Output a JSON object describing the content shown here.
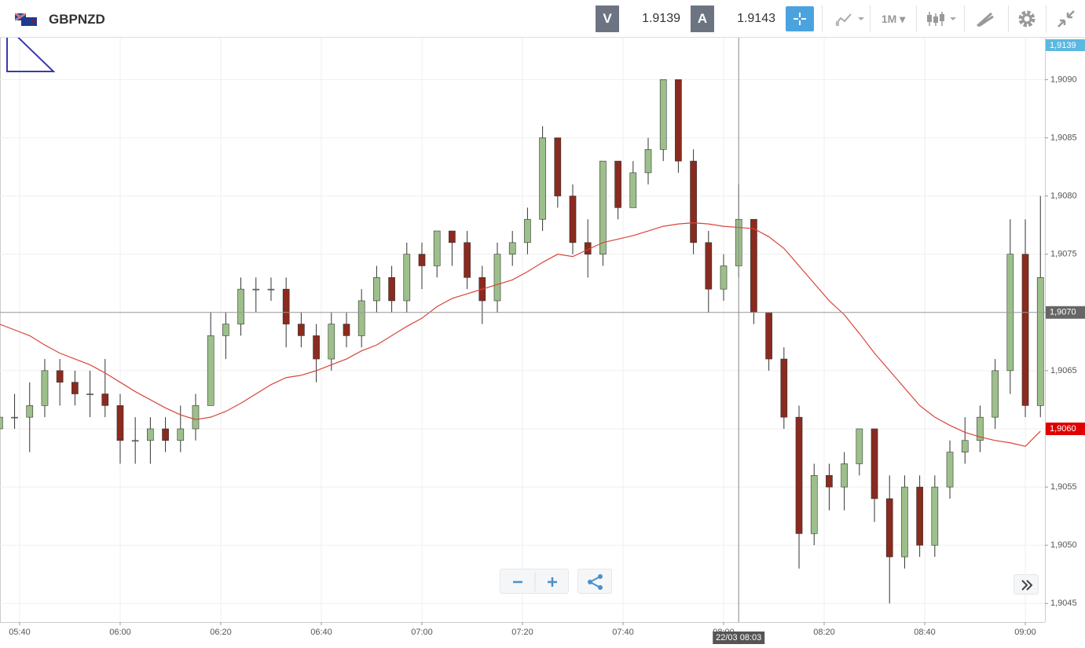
{
  "header": {
    "symbol": "GBPNZD",
    "bid_label": "V",
    "bid": "1.9139",
    "ask_label": "A",
    "ask": "1.9143",
    "timeframe": "1M"
  },
  "chart_data": {
    "type": "candlestick",
    "x": [
      336,
      339,
      342,
      345,
      348,
      351,
      354,
      357,
      360,
      363,
      366,
      369,
      372,
      375,
      378,
      381,
      384,
      387,
      390,
      393,
      396,
      399,
      402,
      405,
      408,
      411,
      414,
      417,
      420,
      423,
      426,
      429,
      432,
      435,
      438,
      441,
      444,
      447,
      450,
      453,
      456,
      459,
      462,
      465,
      468,
      471,
      474,
      477,
      480,
      483,
      486,
      489,
      492,
      495,
      498,
      501,
      504,
      507,
      510,
      513,
      516,
      519,
      522,
      525,
      528,
      531,
      534,
      537,
      540,
      543
    ],
    "open": [
      1.906,
      1.9061,
      1.9061,
      1.9062,
      1.9065,
      1.9064,
      1.9063,
      1.9063,
      1.9062,
      1.9059,
      1.9059,
      1.906,
      1.9059,
      1.906,
      1.9062,
      1.9068,
      1.9069,
      1.9072,
      1.9072,
      1.9072,
      1.9069,
      1.9068,
      1.9066,
      1.9069,
      1.9068,
      1.9071,
      1.9073,
      1.9071,
      1.9075,
      1.9074,
      1.9077,
      1.9076,
      1.9073,
      1.9071,
      1.9075,
      1.9076,
      1.9078,
      1.9085,
      1.908,
      1.9076,
      1.9075,
      1.9083,
      1.9079,
      1.9082,
      1.9084,
      1.909,
      1.9083,
      1.9076,
      1.9072,
      1.9074,
      1.9078,
      1.907,
      1.9066,
      1.9061,
      1.9051,
      1.9056,
      1.9055,
      1.9057,
      1.906,
      1.9054,
      1.9049,
      1.9055,
      1.905,
      1.9055,
      1.9058,
      1.9059,
      1.9061,
      1.9065,
      1.9075,
      1.9062
    ],
    "high": [
      1.9063,
      1.9063,
      1.9064,
      1.9066,
      1.9066,
      1.9065,
      1.9065,
      1.9066,
      1.9063,
      1.9061,
      1.9061,
      1.9061,
      1.9062,
      1.9063,
      1.907,
      1.907,
      1.9073,
      1.9073,
      1.9073,
      1.9073,
      1.907,
      1.9069,
      1.907,
      1.907,
      1.9072,
      1.9074,
      1.9074,
      1.9076,
      1.9076,
      1.9077,
      1.9077,
      1.9077,
      1.9074,
      1.9076,
      1.9077,
      1.9079,
      1.9086,
      1.9085,
      1.9081,
      1.9078,
      1.9083,
      1.9083,
      1.9083,
      1.9085,
      1.909,
      1.909,
      1.9084,
      1.9077,
      1.9075,
      1.9081,
      1.9078,
      1.907,
      1.9067,
      1.9062,
      1.9057,
      1.9057,
      1.9058,
      1.906,
      1.906,
      1.9056,
      1.9056,
      1.9056,
      1.9056,
      1.9059,
      1.9061,
      1.9062,
      1.9066,
      1.9078,
      1.9078,
      1.908
    ],
    "low": [
      1.9059,
      1.906,
      1.9058,
      1.9061,
      1.9062,
      1.9062,
      1.9061,
      1.9061,
      1.9057,
      1.9057,
      1.9057,
      1.9058,
      1.9058,
      1.9059,
      1.9062,
      1.9066,
      1.9068,
      1.907,
      1.9071,
      1.9067,
      1.9067,
      1.9064,
      1.9065,
      1.9067,
      1.9067,
      1.907,
      1.907,
      1.907,
      1.9072,
      1.9073,
      1.9074,
      1.9072,
      1.9069,
      1.907,
      1.9074,
      1.9075,
      1.9077,
      1.9079,
      1.9075,
      1.9073,
      1.9074,
      1.9078,
      1.9079,
      1.9081,
      1.9083,
      1.9082,
      1.9075,
      1.907,
      1.9071,
      1.9073,
      1.9069,
      1.9065,
      1.906,
      1.9048,
      1.905,
      1.9053,
      1.9053,
      1.9056,
      1.9052,
      1.9045,
      1.9048,
      1.9049,
      1.9049,
      1.9054,
      1.9057,
      1.9058,
      1.906,
      1.9063,
      1.9061,
      1.9061
    ],
    "close": [
      1.9061,
      1.9061,
      1.9062,
      1.9065,
      1.9064,
      1.9063,
      1.9063,
      1.9062,
      1.9059,
      1.9059,
      1.906,
      1.9059,
      1.906,
      1.9062,
      1.9068,
      1.9069,
      1.9072,
      1.9072,
      1.9072,
      1.9069,
      1.9068,
      1.9066,
      1.9069,
      1.9068,
      1.9071,
      1.9073,
      1.9071,
      1.9075,
      1.9074,
      1.9077,
      1.9076,
      1.9073,
      1.9071,
      1.9075,
      1.9076,
      1.9078,
      1.9085,
      1.908,
      1.9076,
      1.9075,
      1.9083,
      1.9079,
      1.9082,
      1.9084,
      1.909,
      1.9083,
      1.9076,
      1.9072,
      1.9074,
      1.9078,
      1.907,
      1.9066,
      1.9061,
      1.9051,
      1.9056,
      1.9055,
      1.9057,
      1.906,
      1.9054,
      1.9049,
      1.9055,
      1.905,
      1.9055,
      1.9058,
      1.9059,
      1.9061,
      1.9065,
      1.9075,
      1.9062,
      1.9073
    ],
    "up_color": "#9dc08b",
    "down_color": "#8b2a1e",
    "moving_average": {
      "color": "#d9443a",
      "values": [
        1.9069,
        1.90685,
        1.9068,
        1.90672,
        1.90665,
        1.9066,
        1.90655,
        1.90648,
        1.9064,
        1.90632,
        1.90625,
        1.90618,
        1.90612,
        1.90608,
        1.9061,
        1.90615,
        1.90622,
        1.9063,
        1.90638,
        1.90644,
        1.90646,
        1.9065,
        1.90655,
        1.9066,
        1.90667,
        1.90672,
        1.9068,
        1.90688,
        1.90695,
        1.90705,
        1.90712,
        1.90716,
        1.9072,
        1.90724,
        1.90728,
        1.90735,
        1.90743,
        1.9075,
        1.90748,
        1.90754,
        1.9076,
        1.90763,
        1.90766,
        1.9077,
        1.90774,
        1.90776,
        1.90777,
        1.90776,
        1.90774,
        1.90773,
        1.90772,
        1.90765,
        1.90755,
        1.9074,
        1.90725,
        1.9071,
        1.90698,
        1.90682,
        1.90665,
        1.9065,
        1.90635,
        1.9062,
        1.9061,
        1.90603,
        1.90597,
        1.90593,
        1.9059,
        1.90588,
        1.90585,
        1.90598
      ]
    },
    "xlim": [
      336.1,
      543.9
    ],
    "ylim": [
      1.90434,
      1.90936
    ],
    "xticks": [
      {
        "value": 340,
        "label": "05:40"
      },
      {
        "value": 360,
        "label": "06:00"
      },
      {
        "value": 380,
        "label": "06:20"
      },
      {
        "value": 400,
        "label": "06:40"
      },
      {
        "value": 420,
        "label": "07:00"
      },
      {
        "value": 440,
        "label": "07:20"
      },
      {
        "value": 460,
        "label": "07:40"
      },
      {
        "value": 480,
        "label": "08:00"
      },
      {
        "value": 500,
        "label": "08:20"
      },
      {
        "value": 520,
        "label": "08:40"
      },
      {
        "value": 540,
        "label": "09:00"
      }
    ],
    "yticks": [
      {
        "value": 1.9045,
        "label": "1,9045"
      },
      {
        "value": 1.905,
        "label": "1,9050"
      },
      {
        "value": 1.9055,
        "label": "1,9055"
      },
      {
        "value": 1.906,
        "label": "1,9060"
      },
      {
        "value": 1.9065,
        "label": "1,9065"
      },
      {
        "value": 1.907,
        "label": "1,9070"
      },
      {
        "value": 1.9075,
        "label": "1,9075"
      },
      {
        "value": 1.908,
        "label": "1,9080"
      },
      {
        "value": 1.9085,
        "label": "1,9085"
      },
      {
        "value": 1.909,
        "label": "1,9090"
      }
    ],
    "grid": true,
    "top_price_tag": "1,9139",
    "price_tags": [
      {
        "value": 1.907,
        "label": "1,9070",
        "color": "#666666"
      },
      {
        "value": 1.906,
        "label": "1,9060",
        "color": "#e00000"
      }
    ],
    "crosshair": {
      "value": 483,
      "label": "22/03 08:03"
    }
  }
}
